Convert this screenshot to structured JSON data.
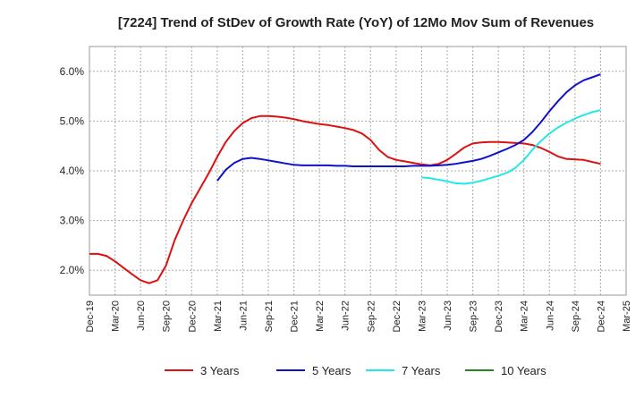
{
  "chart_data": {
    "type": "line",
    "title": "[7224]  Trend of StDev of Growth Rate (YoY) of 12Mo Mov Sum of Revenues",
    "xlabel": "",
    "ylabel": "",
    "ylim": [
      1.5,
      6.5
    ],
    "y_ticks": [
      2.0,
      3.0,
      4.0,
      5.0,
      6.0
    ],
    "y_tick_labels": [
      "2.0%",
      "3.0%",
      "4.0%",
      "5.0%",
      "6.0%"
    ],
    "x_tick_labels": [
      "Dec-19",
      "Mar-20",
      "Jun-20",
      "Sep-20",
      "Dec-20",
      "Mar-21",
      "Jun-21",
      "Sep-21",
      "Dec-21",
      "Mar-22",
      "Jun-22",
      "Sep-22",
      "Dec-22",
      "Mar-23",
      "Jun-23",
      "Sep-23",
      "Dec-23",
      "Mar-24",
      "Jun-24",
      "Sep-24",
      "Dec-24",
      "Mar-25"
    ],
    "x_range_months": [
      0,
      63
    ],
    "grid": true,
    "legend_position": "bottom",
    "series": [
      {
        "name": "3 Years",
        "color": "#dd1111",
        "x": [
          0,
          1,
          2,
          3,
          4,
          5,
          6,
          7,
          8,
          9,
          10,
          11,
          12,
          13,
          14,
          15,
          16,
          17,
          18,
          19,
          20,
          21,
          22,
          23,
          24,
          25,
          26,
          27,
          28,
          29,
          30,
          31,
          32,
          33,
          34,
          35,
          36,
          37,
          38,
          39,
          40,
          41,
          42,
          43,
          44,
          45,
          46,
          47,
          48,
          49,
          50,
          51,
          52,
          53,
          54,
          55,
          56,
          57,
          58,
          59,
          60
        ],
        "values": [
          2.33,
          2.33,
          2.29,
          2.18,
          2.05,
          1.92,
          1.8,
          1.74,
          1.8,
          2.1,
          2.6,
          3.0,
          3.35,
          3.65,
          3.95,
          4.28,
          4.58,
          4.8,
          4.96,
          5.06,
          5.1,
          5.1,
          5.09,
          5.07,
          5.04,
          5.0,
          4.97,
          4.94,
          4.92,
          4.89,
          4.86,
          4.82,
          4.75,
          4.62,
          4.42,
          4.28,
          4.22,
          4.19,
          4.16,
          4.13,
          4.11,
          4.14,
          4.22,
          4.34,
          4.47,
          4.55,
          4.57,
          4.58,
          4.58,
          4.57,
          4.56,
          4.55,
          4.52,
          4.46,
          4.38,
          4.29,
          4.24,
          4.23,
          4.22,
          4.18,
          4.14
        ]
      },
      {
        "name": "5 Years",
        "color": "#1111cc",
        "x": [
          15,
          16,
          17,
          18,
          19,
          20,
          21,
          22,
          23,
          24,
          25,
          26,
          27,
          28,
          29,
          30,
          31,
          32,
          33,
          34,
          35,
          36,
          37,
          38,
          39,
          40,
          41,
          42,
          43,
          44,
          45,
          46,
          47,
          48,
          49,
          50,
          51,
          52,
          53,
          54,
          55,
          56,
          57,
          58,
          59,
          60
        ],
        "values": [
          3.8,
          4.02,
          4.16,
          4.24,
          4.26,
          4.24,
          4.21,
          4.18,
          4.15,
          4.12,
          4.11,
          4.11,
          4.11,
          4.11,
          4.1,
          4.1,
          4.09,
          4.09,
          4.09,
          4.09,
          4.09,
          4.09,
          4.09,
          4.1,
          4.1,
          4.1,
          4.11,
          4.12,
          4.14,
          4.17,
          4.2,
          4.24,
          4.3,
          4.37,
          4.44,
          4.52,
          4.62,
          4.78,
          4.98,
          5.2,
          5.4,
          5.58,
          5.72,
          5.82,
          5.88,
          5.94
        ]
      },
      {
        "name": "7 Years",
        "color": "#22e8e8",
        "x": [
          39,
          40,
          41,
          42,
          43,
          44,
          45,
          46,
          47,
          48,
          49,
          50,
          51,
          52,
          53,
          54,
          55,
          56,
          57,
          58,
          59,
          60
        ],
        "values": [
          3.87,
          3.85,
          3.82,
          3.79,
          3.75,
          3.74,
          3.76,
          3.8,
          3.85,
          3.9,
          3.96,
          4.06,
          4.22,
          4.42,
          4.6,
          4.75,
          4.87,
          4.97,
          5.05,
          5.12,
          5.18,
          5.22
        ]
      },
      {
        "name": "10 Years",
        "color": "#228822",
        "x": [],
        "values": []
      }
    ]
  }
}
